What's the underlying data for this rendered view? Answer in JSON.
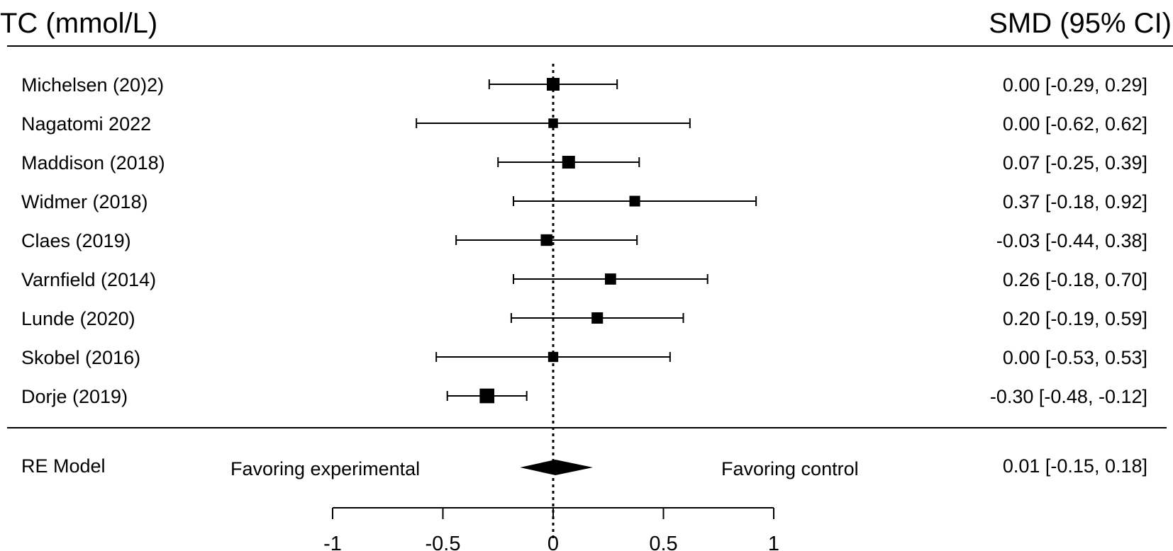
{
  "chart_data": {
    "type": "forest",
    "left_header": "TC (mmol/L)",
    "right_header": "SMD (95% CI)",
    "studies": [
      {
        "label": "Michelsen  (20)2)",
        "estimate": 0.0,
        "lower": -0.29,
        "upper": 0.29,
        "ci_text": "0.00 [-0.29,  0.29]",
        "weight": 1.0
      },
      {
        "label": "Nagatomi 2022",
        "estimate": 0.0,
        "lower": -0.62,
        "upper": 0.62,
        "ci_text": "0.00 [-0.62,  0.62]",
        "weight": 0.3
      },
      {
        "label": "Maddison (2018)",
        "estimate": 0.07,
        "lower": -0.25,
        "upper": 0.39,
        "ci_text": "0.07 [-0.25,  0.39]",
        "weight": 1.0
      },
      {
        "label": "Widmer (2018)",
        "estimate": 0.37,
        "lower": -0.18,
        "upper": 0.92,
        "ci_text": "0.37 [-0.18,  0.92]",
        "weight": 0.5
      },
      {
        "label": "Claes (2019)",
        "estimate": -0.03,
        "lower": -0.44,
        "upper": 0.38,
        "ci_text": "-0.03 [-0.44,  0.38]",
        "weight": 0.7
      },
      {
        "label": "Varnfield (2014)",
        "estimate": 0.26,
        "lower": -0.18,
        "upper": 0.7,
        "ci_text": "0.26 [-0.18,  0.70]",
        "weight": 0.6
      },
      {
        "label": "Lunde (2020)",
        "estimate": 0.2,
        "lower": -0.19,
        "upper": 0.59,
        "ci_text": "0.20 [-0.19,  0.59]",
        "weight": 0.65
      },
      {
        "label": "Skobel (2016)",
        "estimate": 0.0,
        "lower": -0.53,
        "upper": 0.53,
        "ci_text": "0.00 [-0.53,  0.53]",
        "weight": 0.4
      },
      {
        "label": "Dorje  (2019)",
        "estimate": -0.3,
        "lower": -0.48,
        "upper": -0.12,
        "ci_text": "-0.30 [-0.48, -0.12]",
        "weight": 1.6
      }
    ],
    "summary": {
      "label": "RE Model",
      "estimate": 0.01,
      "lower": -0.15,
      "upper": 0.18,
      "ci_text": "0.01 [-0.15,  0.18]"
    },
    "annotations": {
      "left": "Favoring experimental",
      "right": "Favoring control"
    },
    "x_ticks": [
      -1,
      -0.5,
      0,
      0.5,
      1
    ],
    "x_tick_labels": [
      "-1",
      "-0.5",
      "0",
      "0.5",
      "1"
    ],
    "xlim": [
      -1,
      1
    ],
    "reference_line": 0
  }
}
